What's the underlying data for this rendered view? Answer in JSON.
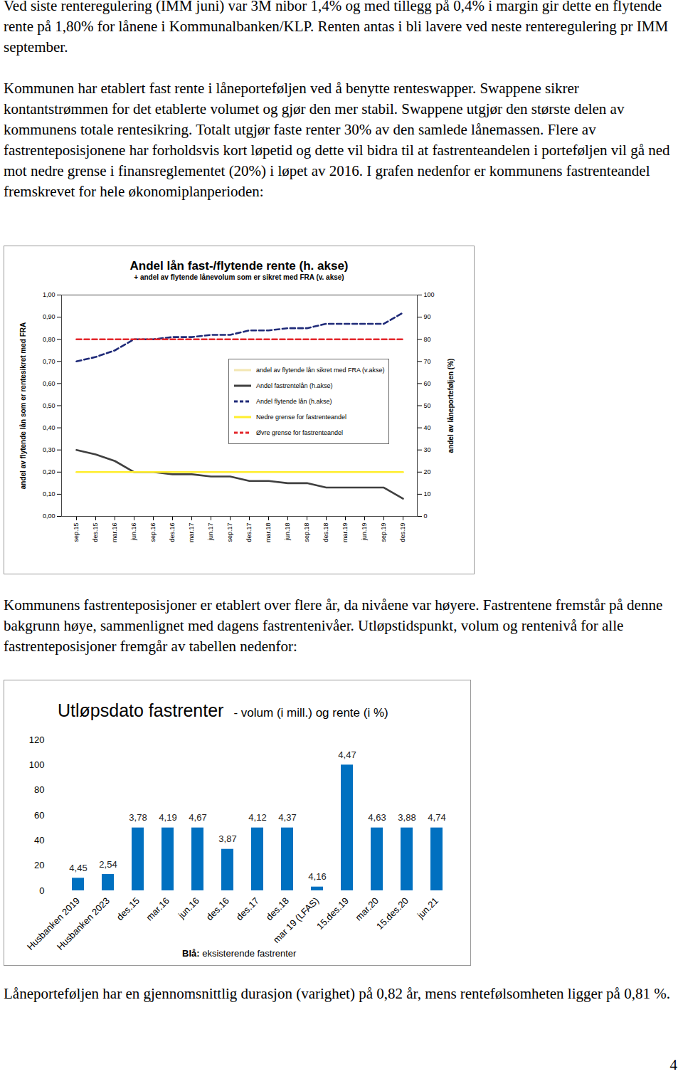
{
  "paragraphs_top": [
    "Ved siste renteregulering (IMM juni) var 3M nibor 1,4% og med tillegg på 0,4% i margin gir dette en flytende rente på 1,80% for lånene i Kommunalbanken/KLP. Renten antas i bli lavere ved neste renteregulering pr IMM september.",
    "Kommunen har etablert fast rente i låneporteføljen ved å benytte renteswapper. Swappene sikrer kontantstrømmen for det etablerte volumet og gjør den mer stabil. Swappene utgjør den største delen av kommunens totale rentesikring. Totalt utgjør faste renter 30% av den samlede lånemassen. Flere av fastrenteposisjonene har forholdsvis kort løpetid og dette vil bidra til at fastrenteandelen i porteføljen vil gå ned mot nedre grense i finansreglementet (20%) i løpet av 2016. I grafen nedenfor er kommunens fastrenteandel fremskrevet for hele økonomiplanperioden:"
  ],
  "paragraph_middle": "Kommunens fastrenteposisjoner er etablert over flere år, da nivåene var høyere. Fastrentene fremstår på denne bakgrunn høye, sammenlignet med dagens fastrentenivåer. Utløpstidspunkt, volum og rentenivå for alle fastrenteposisjoner fremgår av tabellen nedenfor:",
  "paragraph_bottom": "Låneporteføljen har en gjennomsnittlig durasjon (varighet) på 0,82 år, mens rentefølsomheten ligger på 0,81 %.",
  "page_number": "4",
  "chart_data": [
    {
      "type": "line",
      "title": "Andel lån fast-/flytende rente (h. akse)",
      "subtitle": "+ andel av flytende lånevolum som er sikret med FRA (v. akse)",
      "ylabel": "andel av flytende lån som er rentesikret med FRA",
      "y2label": "andel av låneporteføljen (%)",
      "categories": [
        "sep.15",
        "des.15",
        "mar.16",
        "jun.16",
        "sep.16",
        "des.16",
        "mar.17",
        "jun.17",
        "sep.17",
        "des.17",
        "mar.18",
        "jun.18",
        "sep.18",
        "des.18",
        "mar.19",
        "jun.19",
        "sep.19",
        "des.19"
      ],
      "ylim": [
        0,
        1
      ],
      "yticks": [
        {
          "value": 0,
          "label": "0,00"
        },
        {
          "value": 0.1,
          "label": "0,10"
        },
        {
          "value": 0.2,
          "label": "0,20"
        },
        {
          "value": 0.3,
          "label": "0,30"
        },
        {
          "value": 0.4,
          "label": "0,40"
        },
        {
          "value": 0.5,
          "label": "0,50"
        },
        {
          "value": 0.6,
          "label": "0,60"
        },
        {
          "value": 0.7,
          "label": "0,70"
        },
        {
          "value": 0.8,
          "label": "0,80"
        },
        {
          "value": 0.9,
          "label": "0,90"
        },
        {
          "value": 1,
          "label": "1,00"
        }
      ],
      "y2lim": [
        0,
        100
      ],
      "y2ticks": [
        0,
        10,
        20,
        30,
        40,
        50,
        60,
        70,
        80,
        90,
        100
      ],
      "grid": false,
      "legend": "right",
      "series": [
        {
          "name": "andel av flytende lån sikret med FRA (v.akse)",
          "color": "#f3e7b3",
          "line_style": "solid",
          "values": [
            null,
            null,
            null,
            null,
            null,
            null,
            null,
            null,
            null,
            null,
            null,
            null,
            null,
            null,
            null,
            null,
            null,
            null
          ]
        },
        {
          "name": "Andel fastrentelån (h.akse)",
          "color": "#404040",
          "line_style": "solid",
          "axis": "y2",
          "values": [
            30,
            28,
            25,
            20,
            20,
            19,
            19,
            18,
            18,
            16,
            16,
            15,
            15,
            13,
            13,
            13,
            13,
            8
          ]
        },
        {
          "name": "Andel flytende lån (h.akse)",
          "color": "#1f2a78",
          "line_style": "dashed",
          "axis": "y2",
          "values": [
            70,
            72,
            75,
            80,
            80,
            81,
            81,
            82,
            82,
            84,
            84,
            85,
            85,
            87,
            87,
            87,
            87,
            92
          ]
        },
        {
          "name": "Nedre grense for fastrenteandel",
          "color": "#ffee2e",
          "line_style": "solid",
          "axis": "y2",
          "values": [
            20,
            20,
            20,
            20,
            20,
            20,
            20,
            20,
            20,
            20,
            20,
            20,
            20,
            20,
            20,
            20,
            20,
            20
          ]
        },
        {
          "name": "Øvre grense for fastrenteandel",
          "color": "#e3262b",
          "line_style": "dashed",
          "axis": "y2",
          "values": [
            80,
            80,
            80,
            80,
            80,
            80,
            80,
            80,
            80,
            80,
            80,
            80,
            80,
            80,
            80,
            80,
            80,
            80
          ]
        }
      ]
    },
    {
      "type": "bar",
      "title": "Utløpsdato fastrenter",
      "subtitle": "- volum (i mill.) og rente (i %)",
      "categories": [
        "Husbanken 2019",
        "Husbanken 2023",
        "des.15",
        "mar.16",
        "jun.16",
        "des.16",
        "des.17",
        "des.18",
        "mar 19 (LFAS)",
        "15.des.19",
        "mar.20",
        "15.des.20",
        "jun.21"
      ],
      "values": [
        10,
        13,
        50,
        50,
        50,
        33,
        50,
        50,
        3,
        100,
        50,
        50,
        50
      ],
      "annotations": [
        "4,45",
        "2,54",
        "3,78",
        "4,19",
        "4,67",
        "3,87",
        "4,12",
        "4,37",
        "4,16",
        "4,47",
        "4,63",
        "3,88",
        "4,74"
      ],
      "color": "#0070c0",
      "ylim": [
        0,
        120
      ],
      "yticks": [
        0,
        20,
        40,
        60,
        80,
        100,
        120
      ],
      "grid": false,
      "note": {
        "bold": "Blå:",
        "text": " eksisterende fastrenter"
      }
    }
  ]
}
